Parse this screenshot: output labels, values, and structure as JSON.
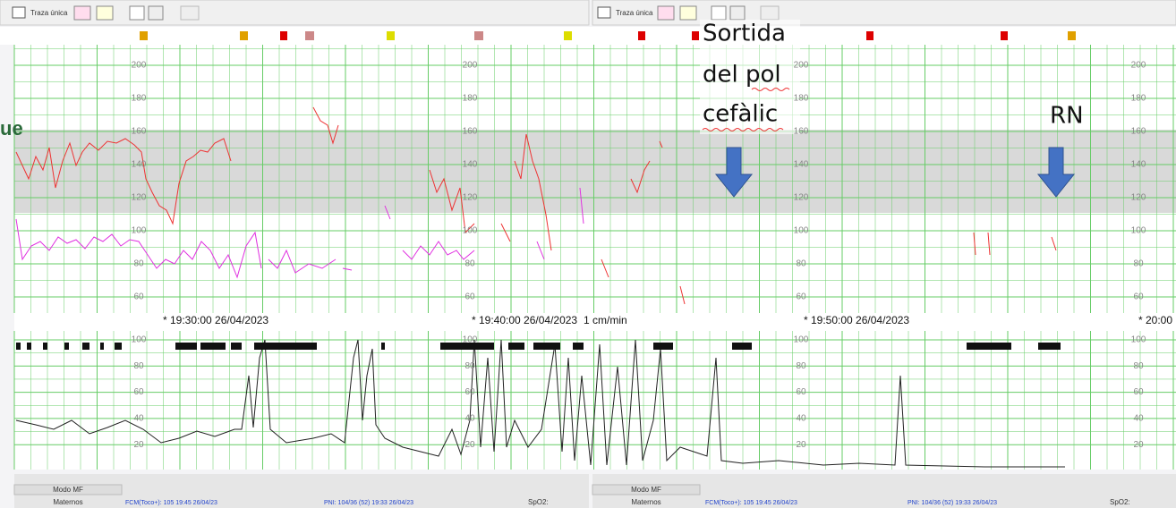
{
  "toolbar": {
    "left": {
      "title": "Traza única"
    },
    "right": {
      "title": "Traza única"
    }
  },
  "fhr_ticks": [
    "200",
    "180",
    "160",
    "140",
    "120",
    "100",
    "80",
    "60"
  ],
  "toco_ticks": [
    "100",
    "80",
    "60",
    "40",
    "20"
  ],
  "timestamps": [
    "* 19:30:00 26/04/2023",
    "* 19:40:00 26/04/2023",
    "1 cm/min",
    "* 19:50:00 26/04/2023",
    "* 20:00"
  ],
  "annotations": {
    "left_fragment": "ue",
    "sortida": [
      "Sortida",
      "del pol",
      "cefàlic"
    ],
    "rn": "RN"
  },
  "status": {
    "left": {
      "mode": "Modo MF",
      "maternos": "Maternos",
      "fcm": "FCM(Toco+): 105 19:45 26/04/23",
      "pni": "PNI: 104/36 (52) 19:33 26/04/23",
      "spo2": "SpO2:"
    },
    "right": {
      "mode": "Modo MF",
      "maternos": "Maternos",
      "fcm": "FCM(Toco+): 105 19:45 26/04/23",
      "pni": "PNI: 104/36 (52) 19:33 26/04/23",
      "spo2": "SpO2:"
    }
  }
}
